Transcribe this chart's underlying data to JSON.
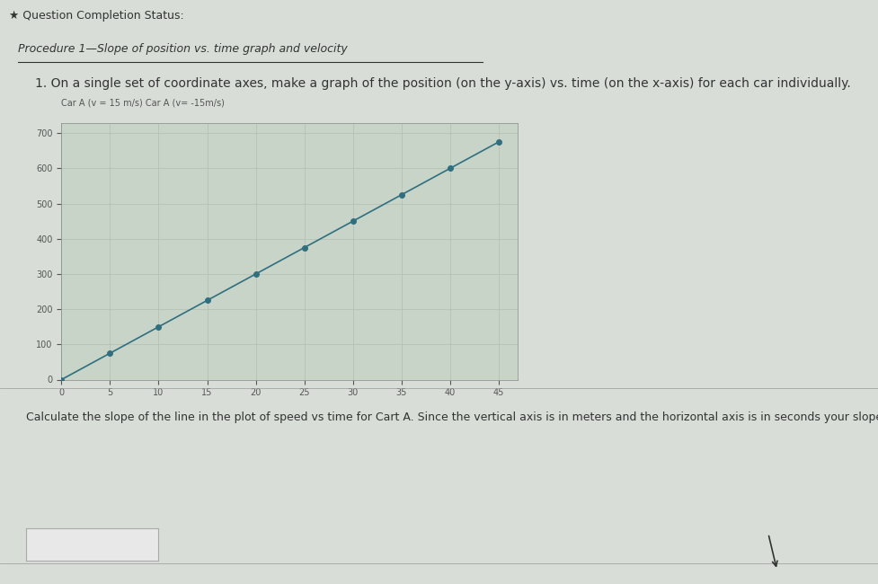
{
  "page_bg": "#d8ddd8",
  "plot_bg": "#c8d4c8",
  "title_text": "★ Question Completion Status:",
  "procedure_text": "Procedure 1—Slope of position vs. time graph and velocity",
  "instruction_text": "1. On a single set of coordinate axes, make a graph of the position (on the y-axis) vs. time (on the x-axis) for each car individually.",
  "legend_label_a": "Car A (v = 15 m/s)",
  "legend_label_b": "Car A (v= -15m/s)",
  "x_data": [
    0,
    5,
    10,
    15,
    20,
    25,
    30,
    35,
    40,
    45
  ],
  "y_data_a": [
    0,
    75,
    150,
    225,
    300,
    375,
    450,
    525,
    600,
    675
  ],
  "x_ticks": [
    0,
    5,
    10,
    15,
    20,
    25,
    30,
    35,
    40,
    45
  ],
  "y_ticks": [
    0,
    100,
    200,
    300,
    400,
    500,
    600,
    700
  ],
  "xlim": [
    0,
    47
  ],
  "ylim": [
    0,
    730
  ],
  "line_color": "#2f6f7f",
  "marker_color": "#2f6f7f",
  "marker_style": "o",
  "marker_size": 4,
  "line_width": 1.2,
  "grid_color": "#b0bfb0",
  "axis_label_color": "#555555",
  "tick_label_color": "#555555",
  "slope_label_text": "Calculate the slope of the line in the plot of speed vs time for Cart A. Since the vertical axis is in meters and the horizontal axis is in seconds your slope should be in m/s.",
  "title_fontsize": 9,
  "procedure_fontsize": 9,
  "instruction_fontsize": 10,
  "tick_fontsize": 7,
  "slope_text_fontsize": 9
}
